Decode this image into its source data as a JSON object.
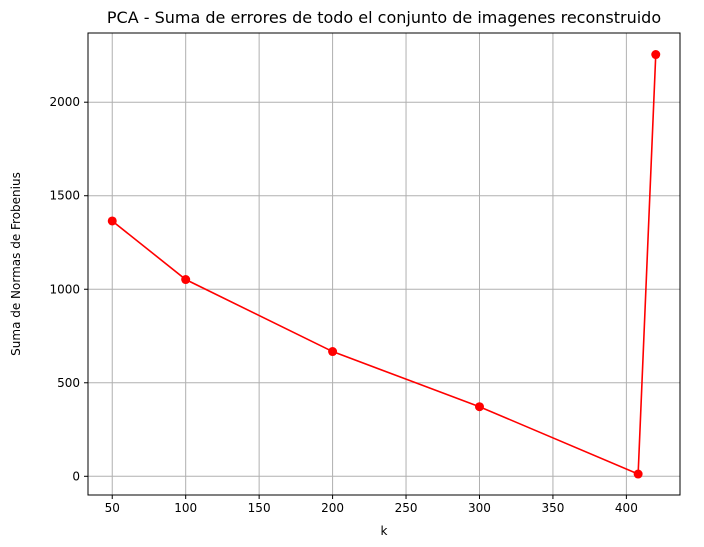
{
  "chart_data": {
    "type": "line",
    "title": "PCA - Suma de errores de todo el conjunto de imagenes reconstruido",
    "xlabel": "k",
    "ylabel": "Suma de Normas de Frobenius",
    "x": [
      50,
      100,
      200,
      300,
      408,
      420
    ],
    "series": [
      {
        "values": [
          1365,
          1052,
          667,
          372,
          12,
          2255
        ],
        "color": "#ff0000",
        "marker": "circle"
      }
    ],
    "xlim": [
      33.5,
      436.5
    ],
    "ylim": [
      -100,
      2370
    ],
    "xticks": [
      50,
      100,
      150,
      200,
      250,
      300,
      350,
      400
    ],
    "yticks": [
      0,
      500,
      1000,
      1500,
      2000
    ],
    "grid": true
  }
}
